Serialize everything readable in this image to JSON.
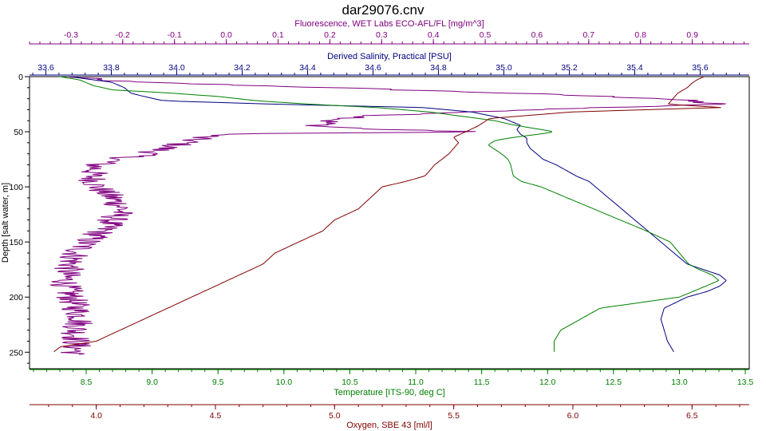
{
  "chart_data": {
    "type": "line",
    "title": "dar29076.cnv",
    "colors": {
      "fluorescence": "#800080",
      "salinity": "#000080",
      "temperature": "#008000",
      "oxygen": "#800000",
      "frame": "#000000"
    },
    "axes": {
      "depth": {
        "label": "Depth [salt water, m]",
        "range": [
          0,
          265
        ],
        "reversed": true,
        "ticks": [
          0,
          50,
          100,
          150,
          200,
          250
        ],
        "tick_labels": [
          "0",
          "50",
          "100",
          "150",
          "200",
          "250"
        ]
      },
      "fluorescence": {
        "label": "Fluorescence, WET Labs ECO-AFL/FL [mg/m^3]",
        "position": "top-outer",
        "range": [
          -0.38,
          1.01
        ],
        "ticks": [
          -0.3,
          -0.2,
          -0.1,
          0.0,
          0.1,
          0.2,
          0.3,
          0.4,
          0.5,
          0.6,
          0.7,
          0.8,
          0.9
        ],
        "tick_labels": [
          "-0.3",
          "-0.2",
          "-0.1",
          "0.0",
          "0.1",
          "0.2",
          "0.3",
          "0.4",
          "0.5",
          "0.6",
          "0.7",
          "0.8",
          "0.9"
        ]
      },
      "salinity": {
        "label": "Derived Salinity, Practical [PSU]",
        "position": "top-inner",
        "range": [
          33.55,
          35.75
        ],
        "ticks": [
          33.6,
          33.8,
          34.0,
          34.2,
          34.4,
          34.6,
          34.8,
          35.0,
          35.2,
          35.4,
          35.6
        ],
        "tick_labels": [
          "33.6",
          "33.8",
          "34.0",
          "34.2",
          "34.4",
          "34.6",
          "34.8",
          "35.0",
          "35.2",
          "35.4",
          "35.6"
        ]
      },
      "temperature": {
        "label": "Temperature [ITS-90, deg C]",
        "position": "bottom-inner",
        "range": [
          8.07,
          13.53
        ],
        "ticks": [
          8.5,
          9.0,
          9.5,
          10.0,
          10.5,
          11.0,
          11.5,
          12.0,
          12.5,
          13.0,
          13.5
        ],
        "tick_labels": [
          "8.5",
          "9.0",
          "9.5",
          "10.0",
          "10.5",
          "11.0",
          "11.5",
          "12.0",
          "12.5",
          "13.0",
          "13.5"
        ]
      },
      "oxygen": {
        "label": "Oxygen, SBE 43 [ml/l]",
        "position": "bottom-outer",
        "range": [
          3.72,
          6.74
        ],
        "ticks": [
          4.0,
          4.5,
          5.0,
          5.5,
          6.0,
          6.5
        ],
        "tick_labels": [
          "4.0",
          "4.5",
          "5.0",
          "5.5",
          "6.0",
          "6.5"
        ]
      }
    },
    "series": [
      {
        "key": "fluorescence",
        "axis": "fluorescence",
        "noise": 0.03,
        "depth": [
          0,
          3,
          5,
          10,
          15,
          20,
          25,
          30,
          35,
          40,
          45,
          48,
          50,
          52,
          55,
          60,
          65,
          70,
          75,
          80,
          90,
          100,
          110,
          120,
          130,
          140,
          150,
          160,
          170,
          180,
          190,
          200,
          210,
          220,
          230,
          240,
          245,
          250,
          252
        ],
        "values": [
          -0.3,
          -0.25,
          -0.18,
          0.2,
          0.55,
          0.85,
          0.95,
          0.6,
          0.3,
          0.2,
          0.18,
          0.3,
          0.5,
          0.0,
          -0.05,
          -0.08,
          -0.12,
          -0.15,
          -0.21,
          -0.25,
          -0.26,
          -0.25,
          -0.22,
          -0.2,
          -0.22,
          -0.24,
          -0.27,
          -0.29,
          -0.3,
          -0.31,
          -0.31,
          -0.3,
          -0.29,
          -0.28,
          -0.29,
          -0.29,
          -0.29,
          -0.29,
          -0.3
        ]
      },
      {
        "key": "salinity",
        "axis": "salinity",
        "noise": 0.0,
        "depth": [
          0,
          2,
          5,
          10,
          15,
          18,
          22,
          25,
          28,
          32,
          38,
          44,
          48,
          52,
          56,
          60,
          65,
          70,
          75,
          80,
          90,
          95,
          100,
          110,
          120,
          130,
          140,
          150,
          160,
          170,
          175,
          180,
          185,
          190,
          195,
          200,
          210,
          220,
          230,
          240,
          250
        ],
        "values": [
          33.68,
          33.72,
          33.8,
          33.84,
          33.86,
          33.9,
          33.96,
          34.3,
          34.75,
          34.9,
          35.0,
          35.05,
          35.04,
          35.05,
          35.07,
          35.07,
          35.08,
          35.1,
          35.12,
          35.16,
          35.22,
          35.26,
          35.28,
          35.32,
          35.36,
          35.4,
          35.44,
          35.48,
          35.52,
          35.56,
          35.61,
          35.66,
          35.68,
          35.66,
          35.62,
          35.56,
          35.49,
          35.48,
          35.49,
          35.5,
          35.52
        ]
      },
      {
        "key": "temperature",
        "axis": "temperature",
        "noise": 0.0,
        "depth": [
          0,
          3,
          8,
          12,
          15,
          18,
          22,
          25,
          28,
          32,
          36,
          40,
          44,
          48,
          50,
          52,
          55,
          58,
          62,
          66,
          70,
          75,
          80,
          85,
          90,
          95,
          100,
          110,
          120,
          130,
          140,
          150,
          160,
          170,
          175,
          180,
          185,
          190,
          195,
          200,
          205,
          210,
          220,
          230,
          240,
          250
        ],
        "values": [
          8.3,
          8.45,
          8.55,
          8.7,
          9.15,
          9.5,
          9.8,
          10.2,
          10.7,
          11.1,
          11.35,
          11.6,
          11.75,
          11.95,
          12.05,
          11.95,
          11.75,
          11.6,
          11.55,
          11.6,
          11.65,
          11.7,
          11.72,
          11.73,
          11.74,
          11.8,
          11.95,
          12.15,
          12.35,
          12.55,
          12.75,
          12.93,
          13.0,
          13.07,
          13.15,
          13.25,
          13.3,
          13.2,
          13.1,
          13.0,
          12.7,
          12.4,
          12.25,
          12.1,
          12.05,
          12.05
        ]
      },
      {
        "key": "oxygen",
        "axis": "oxygen",
        "noise": 0.0,
        "depth": [
          0,
          3,
          6,
          10,
          15,
          20,
          25,
          28,
          32,
          38,
          45,
          50,
          55,
          60,
          65,
          70,
          75,
          80,
          90,
          95,
          100,
          110,
          120,
          130,
          140,
          150,
          160,
          170,
          180,
          190,
          200,
          210,
          220,
          230,
          240,
          245,
          250
        ],
        "values": [
          6.55,
          6.52,
          6.5,
          6.48,
          6.44,
          6.42,
          6.4,
          6.62,
          6.0,
          5.65,
          5.6,
          5.55,
          5.5,
          5.52,
          5.5,
          5.48,
          5.45,
          5.42,
          5.38,
          5.3,
          5.2,
          5.15,
          5.1,
          5.0,
          4.95,
          4.85,
          4.75,
          4.7,
          4.6,
          4.5,
          4.4,
          4.3,
          4.2,
          4.1,
          4.0,
          3.85,
          3.82
        ]
      }
    ]
  }
}
